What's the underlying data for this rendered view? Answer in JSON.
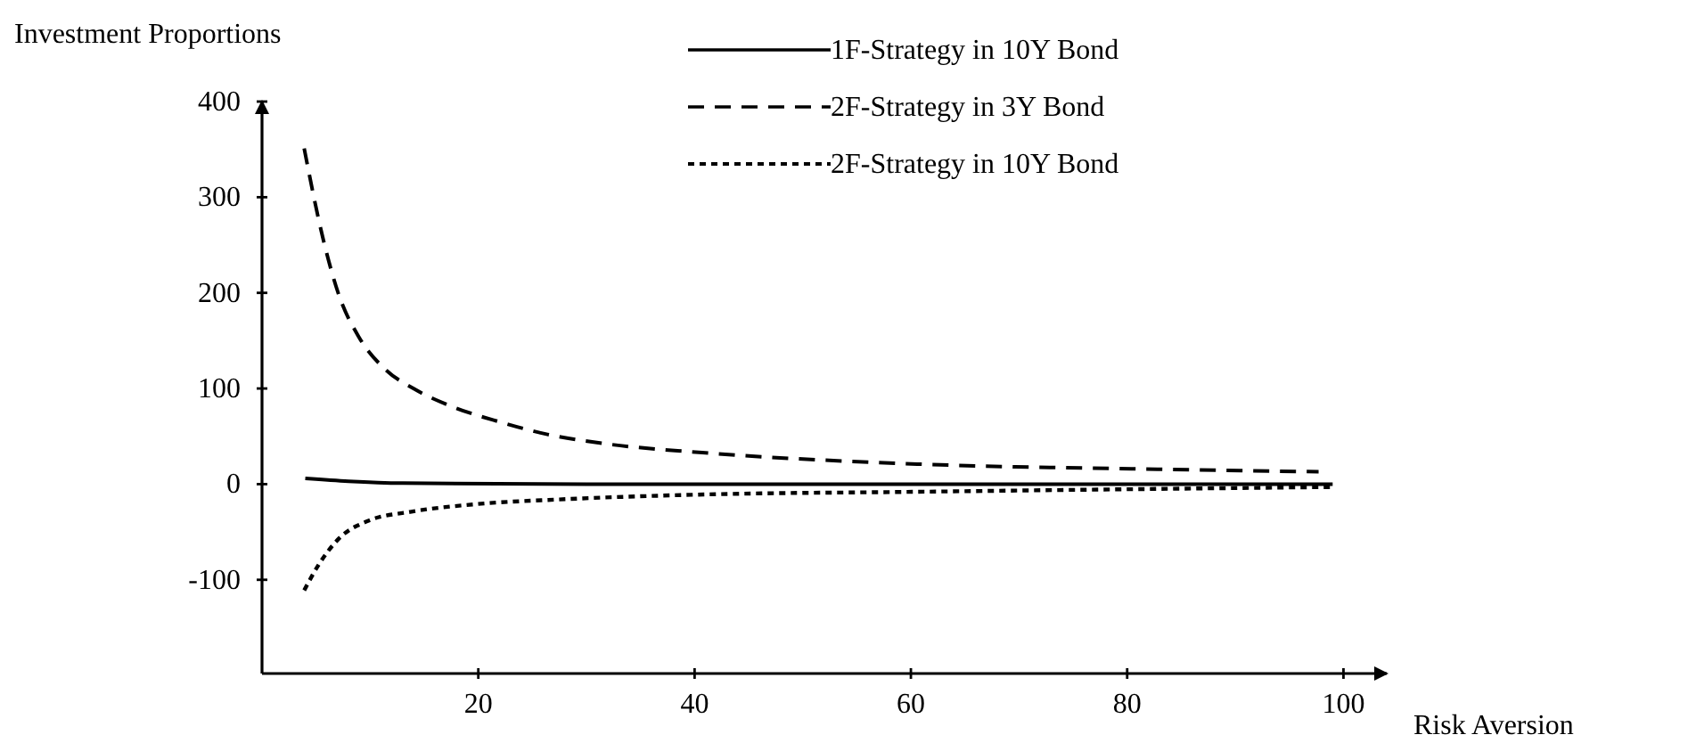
{
  "chart_data": {
    "type": "line",
    "xlabel": "Risk Aversion",
    "ylabel": "Investment Proportions",
    "xlim": [
      0,
      104
    ],
    "ylim": [
      -198,
      400
    ],
    "xticks": [
      20,
      40,
      60,
      80,
      100
    ],
    "yticks": [
      -100,
      0,
      100,
      200,
      300,
      400
    ],
    "legend": "top right",
    "grid": false,
    "series": [
      {
        "name": "1F-Strategy in 10Y Bond",
        "color": "#000000",
        "line_style": "solid",
        "x": [
          4,
          8,
          13,
          30,
          60,
          99
        ],
        "values": [
          6,
          3,
          1,
          0,
          0,
          0
        ]
      },
      {
        "name": "2F-Strategy in 3Y Bond",
        "color": "#000000",
        "line_style": "dashed",
        "x": [
          3.9,
          5.7,
          7.1,
          9,
          11.5,
          14,
          17.6,
          22,
          26.4,
          31.9,
          40.7,
          60.6,
          80.4,
          97.7
        ],
        "values": [
          351,
          254,
          198,
          153,
          119,
          100,
          81,
          65,
          52,
          42,
          33,
          21,
          16,
          13
        ]
      },
      {
        "name": "2F-Strategy in 10Y Bond",
        "color": "#000000",
        "line_style": "dotted",
        "x": [
          3.9,
          5.2,
          7.1,
          9.9,
          13.7,
          19.7,
          27.5,
          40.2,
          60.5,
          82.6,
          99
        ],
        "values": [
          -111,
          -85,
          -57,
          -38,
          -29,
          -21,
          -16,
          -11,
          -8,
          -5,
          -3
        ]
      }
    ]
  }
}
